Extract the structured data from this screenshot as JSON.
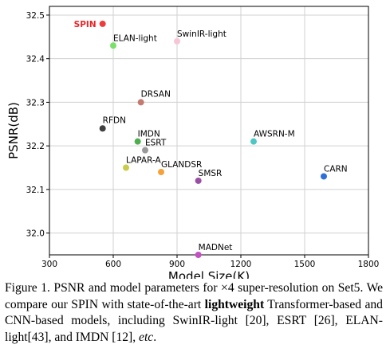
{
  "chart_data": {
    "type": "scatter",
    "xlabel": "Model Size(K)",
    "ylabel": "PSNR(dB)",
    "xlim": [
      300,
      1800
    ],
    "ylim": [
      31.95,
      32.52
    ],
    "xticks": [
      "300",
      "600",
      "900",
      "1200",
      "1500",
      "1800"
    ],
    "yticks": [
      "32.0",
      "32.1",
      "32.2",
      "32.3",
      "32.4",
      "32.5"
    ],
    "grid": true,
    "points": [
      {
        "name": "SPIN",
        "x": 550,
        "y": 32.48,
        "color": "#ef3b3b",
        "highlight": true
      },
      {
        "name": "ELAN-light",
        "x": 600,
        "y": 32.43,
        "color": "#7be06a"
      },
      {
        "name": "SwinIR-light",
        "x": 900,
        "y": 32.44,
        "color": "#f7c6d6"
      },
      {
        "name": "DRSAN",
        "x": 730,
        "y": 32.3,
        "color": "#c47a6e"
      },
      {
        "name": "RFDN",
        "x": 550,
        "y": 32.24,
        "color": "#404040"
      },
      {
        "name": "IMDN",
        "x": 715,
        "y": 32.21,
        "color": "#4cae4c"
      },
      {
        "name": "ESRT",
        "x": 750,
        "y": 32.19,
        "color": "#9a9a9a"
      },
      {
        "name": "LAPAR-A",
        "x": 660,
        "y": 32.15,
        "color": "#c8cc4a"
      },
      {
        "name": "GLANDSR",
        "x": 825,
        "y": 32.14,
        "color": "#f5a339"
      },
      {
        "name": "SMSR",
        "x": 1000,
        "y": 32.12,
        "color": "#9a4fa5"
      },
      {
        "name": "AWSRN-M",
        "x": 1260,
        "y": 32.21,
        "color": "#4cc7c3"
      },
      {
        "name": "CARN",
        "x": 1590,
        "y": 32.13,
        "color": "#2f6fd8"
      },
      {
        "name": "MADNet",
        "x": 1000,
        "y": 31.95,
        "color": "#c451c4"
      }
    ]
  },
  "caption": {
    "prefix": "Figure 1. PSNR and model parameters for ",
    "times": "×4",
    "middle": " super-resolution on Set5. We compare our SPIN with state-of-the-art ",
    "bold": "lightweight",
    "suffix": " Transformer-based and CNN-based models, including SwinIR-light [20], ESRT [26], ELAN-light[43], and IMDN [12], ",
    "etc": "etc",
    "end": "."
  }
}
